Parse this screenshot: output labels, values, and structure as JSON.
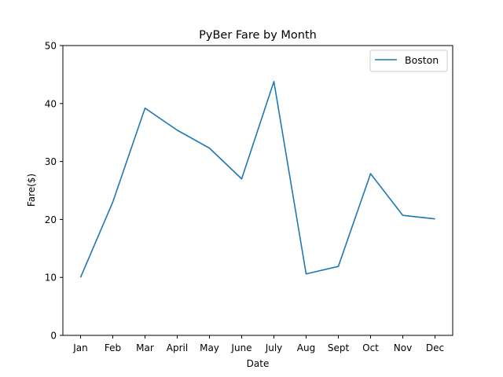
{
  "chart_data": {
    "type": "line",
    "title": "PyBer Fare by Month",
    "xlabel": "Date",
    "ylabel": "Fare($)",
    "categories": [
      "Jan",
      "Feb",
      "Mar",
      "April",
      "May",
      "June",
      "July",
      "Aug",
      "Sept",
      "Oct",
      "Nov",
      "Dec"
    ],
    "series": [
      {
        "name": "Boston",
        "color": "#1f77b4",
        "values": [
          10.0,
          23.0,
          39.2,
          35.4,
          32.3,
          27.0,
          43.8,
          10.6,
          11.9,
          27.9,
          20.7,
          20.1
        ]
      }
    ],
    "ylim": [
      0,
      50
    ],
    "yticks": [
      0,
      10,
      20,
      30,
      40,
      50
    ],
    "grid": false,
    "legend_position": "top-right"
  }
}
